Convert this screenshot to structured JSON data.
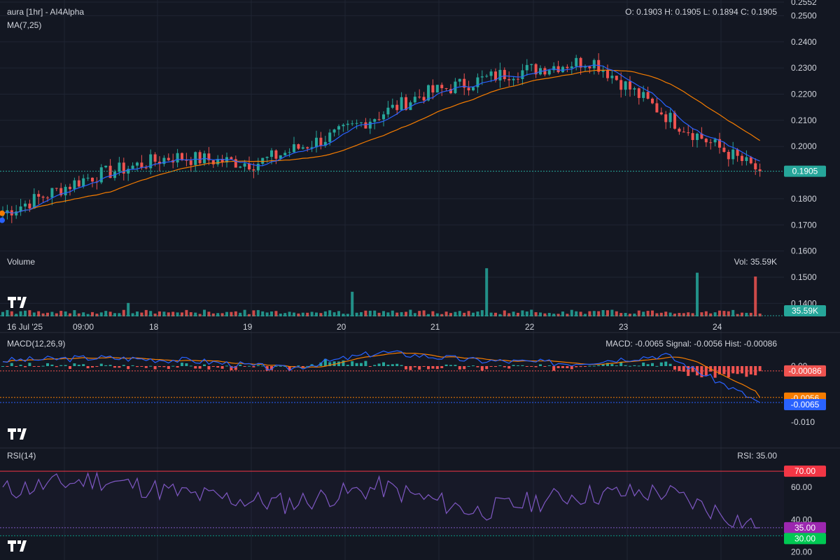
{
  "header": {
    "symbol": "aura [1hr] - AI4Alpha",
    "ma_label": "MA(7,25)",
    "ohlc": "O: 0.1903 H: 0.1905 L: 0.1894 C: 0.1905"
  },
  "volume": {
    "label": "Volume",
    "readout": "Vol: 35.59K",
    "badge": "35.59K",
    "badge_color": "#26a69a"
  },
  "macd": {
    "label": "MACD(12,26,9)",
    "readout": "MACD: -0.0065 Signal: -0.0056 Hist: -0.00086",
    "hist_badge": "-0.00086",
    "signal_badge": "-0.0056",
    "macd_badge": "-0.0065",
    "ticks": [
      "0.00",
      "-0.010"
    ]
  },
  "rsi": {
    "label": "RSI(14)",
    "readout": "RSI: 35.00",
    "badges": [
      "70.00",
      "35.00",
      "30.00"
    ],
    "ticks": [
      "60.00",
      "40.00",
      "20.00"
    ]
  },
  "price_badge": "0.1905",
  "colors": {
    "up": "#26a69a",
    "down": "#ef5350",
    "ma7": "#2962ff",
    "ma25": "#f57c00",
    "macd_line": "#2962ff",
    "signal_line": "#f57c00",
    "rsi_line": "#7e57c2",
    "rsi70": "#f23645",
    "rsi30": "#089981",
    "rsi_badge": "#9c27b0"
  },
  "chart_data": [
    {
      "type": "candlestick",
      "title": "aura [1hr] - AI4Alpha",
      "x_ticks": [
        "16 Jul '25",
        "09:00",
        "18",
        "19",
        "20",
        "21",
        "22",
        "23",
        "24"
      ],
      "y_ticks": [
        "0.2552",
        "0.2500",
        "0.2400",
        "0.2300",
        "0.2200",
        "0.2100",
        "0.2000",
        "0.1905",
        "0.1800",
        "0.1700",
        "0.1600",
        "0.1500",
        "0.1400"
      ],
      "ylim": [
        0.135,
        0.256
      ],
      "series": [
        {
          "name": "MA(7,25)",
          "x": [
            "16 Jul '25",
            "09:00",
            "18",
            "19",
            "20",
            "21",
            "22",
            "23",
            "24"
          ],
          "values": [
            0.174,
            0.187,
            0.195,
            0.194,
            0.203,
            0.218,
            0.227,
            0.233,
            0.211
          ]
        },
        {
          "name": "MA(7,25)",
          "x": [
            "16 Jul '25",
            "09:00",
            "18",
            "19",
            "20",
            "21",
            "22",
            "23",
            "24"
          ],
          "values": [
            0.173,
            0.179,
            0.191,
            0.196,
            0.199,
            0.214,
            0.224,
            0.231,
            0.212
          ]
        }
      ],
      "keypoints": [
        {
          "x": "16 Jul '25",
          "close": 0.1745
        },
        {
          "x": "09:00",
          "close": 0.188
        },
        {
          "x": "18",
          "close": 0.196
        },
        {
          "x": "19",
          "close": 0.1935
        },
        {
          "x": "20",
          "close": 0.205
        },
        {
          "x": "21",
          "close": 0.22
        },
        {
          "x": "22",
          "close": 0.228
        },
        {
          "x": "23",
          "close": 0.233
        },
        {
          "x": "24",
          "close": 0.209
        },
        {
          "x": "last",
          "close": 0.1905
        }
      ],
      "volume_peaks": [
        {
          "x": "16 Jul '25",
          "value": 12000
        },
        {
          "x": "18",
          "value": 17000
        },
        {
          "x": "18",
          "value": 43000
        },
        {
          "x": "23",
          "value": 22000
        },
        {
          "x": "23",
          "value": 39000
        },
        {
          "x": "24",
          "value": 35590
        }
      ]
    },
    {
      "type": "line",
      "title": "MACD(12,26,9)",
      "x": [
        "16 Jul '25",
        "09:00",
        "18",
        "19",
        "20",
        "21",
        "22",
        "23",
        "24"
      ],
      "series": [
        {
          "name": "MACD",
          "values": [
            0.001,
            0.0015,
            0.001,
            -0.0005,
            0.0025,
            0.001,
            0.0005,
            0.002,
            -0.0065
          ]
        },
        {
          "name": "Signal",
          "values": [
            0.0008,
            0.0013,
            0.0012,
            0.0,
            0.0015,
            0.0018,
            0.001,
            0.001,
            -0.0056
          ]
        },
        {
          "name": "Hist",
          "values": [
            0.0002,
            0.0002,
            -0.0002,
            -0.0005,
            0.001,
            -0.0008,
            -0.0005,
            0.001,
            -0.00086
          ]
        }
      ],
      "ylim": [
        -0.014,
        0.006
      ]
    },
    {
      "type": "line",
      "title": "RSI(14)",
      "x": [
        "16 Jul '25",
        "09:00",
        "18",
        "19",
        "20",
        "21",
        "22",
        "23",
        "24"
      ],
      "series": [
        {
          "name": "RSI",
          "values": [
            58,
            65,
            55,
            50,
            60,
            45,
            55,
            57,
            35
          ]
        }
      ],
      "levels": [
        70,
        30
      ],
      "ylim": [
        15,
        80
      ]
    }
  ]
}
